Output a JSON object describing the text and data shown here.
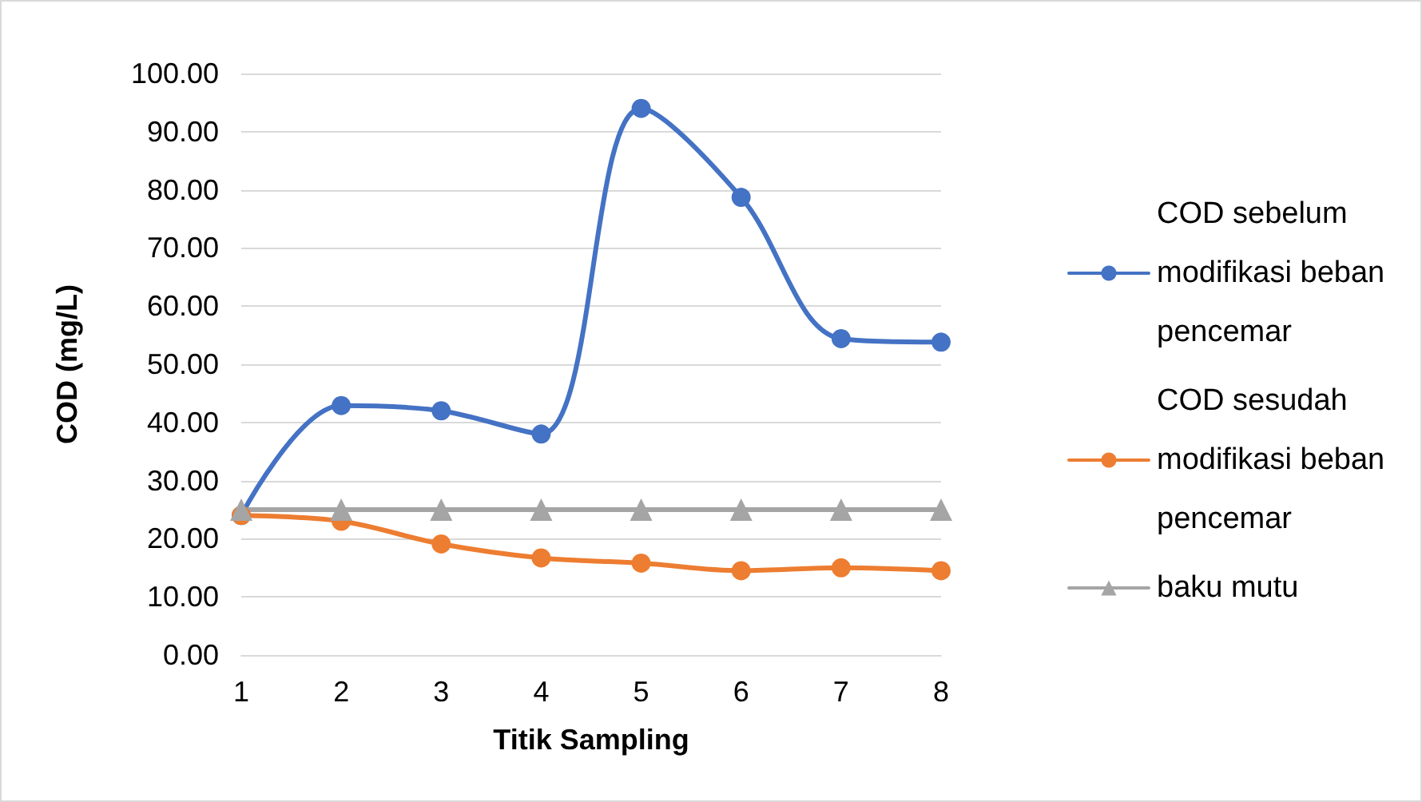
{
  "chart_data": {
    "type": "line",
    "xlabel": "Titik Sampling",
    "ylabel": "COD (mg/L)",
    "categories": [
      "1",
      "2",
      "3",
      "4",
      "5",
      "6",
      "7",
      "8"
    ],
    "series": [
      {
        "name": "COD sebelum modifikasi beban pencemar",
        "color": "#4472c4",
        "marker": "circle",
        "values": [
          24.0,
          42.9,
          42.0,
          38.0,
          94.0,
          78.7,
          54.4,
          53.8
        ]
      },
      {
        "name": "COD sesudah modifikasi beban pencemar",
        "color": "#ed7d31",
        "marker": "circle",
        "values": [
          24.0,
          23.0,
          19.1,
          16.7,
          15.8,
          14.5,
          15.0,
          14.5
        ]
      },
      {
        "name": "baku mutu",
        "color": "#a5a5a5",
        "marker": "triangle",
        "values": [
          25,
          25,
          25,
          25,
          25,
          25,
          25,
          25
        ]
      }
    ],
    "ylim": [
      0,
      100
    ],
    "yticks": [
      {
        "value": 0,
        "label": "0.00"
      },
      {
        "value": 10,
        "label": "10.00"
      },
      {
        "value": 20,
        "label": "20.00"
      },
      {
        "value": 30,
        "label": "30.00"
      },
      {
        "value": 40,
        "label": "40.00"
      },
      {
        "value": 50,
        "label": "50.00"
      },
      {
        "value": 60,
        "label": "60.00"
      },
      {
        "value": 70,
        "label": "70.00"
      },
      {
        "value": 80,
        "label": "80.00"
      },
      {
        "value": 90,
        "label": "90.00"
      },
      {
        "value": 100,
        "label": "100.00"
      }
    ],
    "grid": "y",
    "legend": "right",
    "line_style": "solid"
  }
}
